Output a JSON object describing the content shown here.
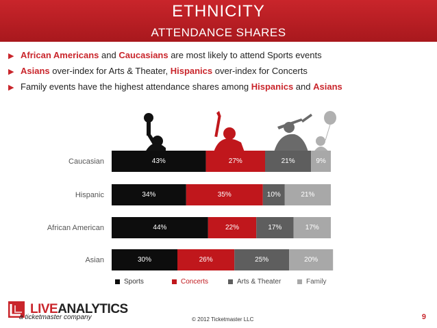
{
  "header": {
    "title": "ETHNICITY",
    "subtitle": "ATTENDANCE SHARES"
  },
  "bullets": [
    {
      "segments": [
        {
          "text": "African Americans",
          "hl": true
        },
        {
          "text": " and ",
          "hl": false
        },
        {
          "text": "Caucasians",
          "hl": true
        },
        {
          "text": " are most likely to attend Sports events",
          "hl": false
        }
      ]
    },
    {
      "segments": [
        {
          "text": "Asians",
          "hl": true
        },
        {
          "text": " over-index for Arts & Theater, ",
          "hl": false
        },
        {
          "text": "Hispanics",
          "hl": true
        },
        {
          "text": " over-index for Concerts",
          "hl": false
        }
      ]
    },
    {
      "segments": [
        {
          "text": "Family events have the highest attendance shares among ",
          "hl": false
        },
        {
          "text": "Hispanics",
          "hl": true
        },
        {
          "text": " and ",
          "hl": false
        },
        {
          "text": "Asians",
          "hl": true
        }
      ]
    }
  ],
  "chart_data": {
    "type": "bar",
    "orientation": "horizontal",
    "stacked": true,
    "categories": [
      "Caucasian",
      "Hispanic",
      "African American",
      "Asian"
    ],
    "series": [
      {
        "name": "Sports",
        "color": "#0d0d0d",
        "values": [
          43,
          34,
          44,
          30
        ]
      },
      {
        "name": "Concerts",
        "color": "#c0171c",
        "values": [
          27,
          35,
          22,
          26
        ]
      },
      {
        "name": "Arts & Theater",
        "color": "#5e5e5e",
        "values": [
          21,
          10,
          17,
          25
        ]
      },
      {
        "name": "Family",
        "color": "#a8a8a8",
        "values": [
          9,
          21,
          17,
          20
        ]
      }
    ],
    "data_labels": [
      [
        "43%",
        "27%",
        "21%",
        "9%"
      ],
      [
        "34%",
        "35%",
        "10%",
        "21%"
      ],
      [
        "44%",
        "22%",
        "17%",
        "17%"
      ],
      [
        "30%",
        "26%",
        "25%",
        "20%"
      ]
    ],
    "xlim": [
      0,
      100
    ],
    "legend": "bottom"
  },
  "footer": {
    "logo_live": "LIVE",
    "logo_analytics": "ANALYTICS",
    "logo_sub": "a ticketmaster company",
    "copyright": "© 2012 Ticketmaster LLC",
    "page_number": "9"
  }
}
